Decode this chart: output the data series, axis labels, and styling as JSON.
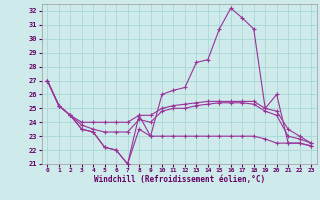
{
  "xlabel": "Windchill (Refroidissement éolien,°C)",
  "background_color": "#ceeaea",
  "grid_color": "#a8d8d8",
  "xlim": [
    -0.5,
    23.5
  ],
  "ylim": [
    21,
    32.5
  ],
  "xticks": [
    0,
    1,
    2,
    3,
    4,
    5,
    6,
    7,
    8,
    9,
    10,
    11,
    12,
    13,
    14,
    15,
    16,
    17,
    18,
    19,
    20,
    21,
    22,
    23
  ],
  "yticks": [
    21,
    22,
    23,
    24,
    25,
    26,
    27,
    28,
    29,
    30,
    31,
    32
  ],
  "line_color": "#993399",
  "lines": [
    {
      "x": [
        0,
        1,
        2,
        3,
        4,
        5,
        6,
        7,
        8,
        9,
        10,
        11,
        12,
        13,
        14,
        15,
        16,
        17,
        18,
        19,
        20,
        21,
        22,
        23
      ],
      "y": [
        27.0,
        25.2,
        24.5,
        23.5,
        23.3,
        22.2,
        22.0,
        21.0,
        24.5,
        23.0,
        26.0,
        26.3,
        26.5,
        28.3,
        28.5,
        30.7,
        32.2,
        31.5,
        30.7,
        25.0,
        26.0,
        22.5,
        22.5,
        22.3
      ]
    },
    {
      "x": [
        0,
        1,
        2,
        3,
        4,
        5,
        6,
        7,
        8,
        9,
        10,
        11,
        12,
        13,
        14,
        15,
        16,
        17,
        18,
        19,
        20,
        21,
        22,
        23
      ],
      "y": [
        27.0,
        25.2,
        24.5,
        24.0,
        24.0,
        24.0,
        24.0,
        24.0,
        24.5,
        24.5,
        25.0,
        25.2,
        25.3,
        25.4,
        25.5,
        25.5,
        25.5,
        25.5,
        25.5,
        25.0,
        24.8,
        23.5,
        23.0,
        22.5
      ]
    },
    {
      "x": [
        0,
        1,
        2,
        3,
        4,
        5,
        6,
        7,
        8,
        9,
        10,
        11,
        12,
        13,
        14,
        15,
        16,
        17,
        18,
        19,
        20,
        21,
        22,
        23
      ],
      "y": [
        27.0,
        25.2,
        24.5,
        23.8,
        23.5,
        23.3,
        23.3,
        23.3,
        24.2,
        24.0,
        24.8,
        25.0,
        25.0,
        25.2,
        25.3,
        25.4,
        25.4,
        25.4,
        25.3,
        24.8,
        24.5,
        23.0,
        22.8,
        22.5
      ]
    },
    {
      "x": [
        0,
        1,
        2,
        3,
        4,
        5,
        6,
        7,
        8,
        9,
        10,
        11,
        12,
        13,
        14,
        15,
        16,
        17,
        18,
        19,
        20,
        21,
        22,
        23
      ],
      "y": [
        27.0,
        25.2,
        24.5,
        23.5,
        23.3,
        22.2,
        22.0,
        21.0,
        23.5,
        23.0,
        23.0,
        23.0,
        23.0,
        23.0,
        23.0,
        23.0,
        23.0,
        23.0,
        23.0,
        22.8,
        22.5,
        22.5,
        22.5,
        22.3
      ]
    }
  ]
}
